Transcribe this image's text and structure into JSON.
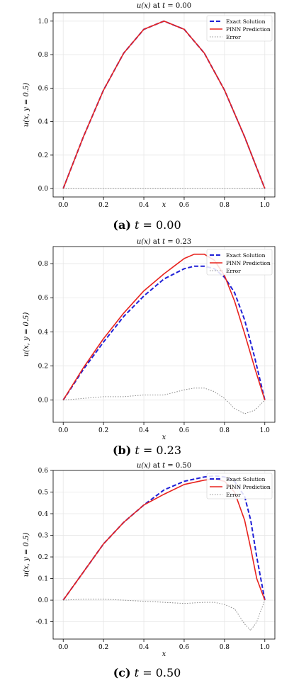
{
  "chart_data": [
    {
      "type": "line",
      "title_fn": "u(x)",
      "title_rest": " at ",
      "title_t": "t",
      "title_val": " = 0.00",
      "xlabel": "x",
      "ylabel": "u(x, y = 0.5)",
      "xlim": [
        -0.05,
        1.05
      ],
      "ylim": [
        -0.05,
        1.05
      ],
      "xticks": [
        "0.0",
        "0.2",
        "0.4",
        "0.6",
        "0.8",
        "1.0"
      ],
      "yticks": [
        "0.0",
        "0.2",
        "0.4",
        "0.6",
        "0.8",
        "1.0"
      ],
      "grid": true,
      "legend": "top-right",
      "x": [
        0.0,
        0.1,
        0.2,
        0.3,
        0.4,
        0.5,
        0.6,
        0.7,
        0.8,
        0.9,
        1.0
      ],
      "series": [
        {
          "name": "Exact Solution",
          "style": "dashed",
          "color": "#1f1fd6",
          "values": [
            0.0,
            0.309,
            0.588,
            0.809,
            0.951,
            1.0,
            0.951,
            0.809,
            0.588,
            0.309,
            0.0
          ]
        },
        {
          "name": "PINN Prediction",
          "style": "solid",
          "color": "#e8231e",
          "values": [
            0.0,
            0.309,
            0.588,
            0.809,
            0.951,
            1.0,
            0.951,
            0.809,
            0.588,
            0.309,
            0.0
          ]
        },
        {
          "name": "Error",
          "style": "dotted",
          "color": "#888888",
          "values": [
            0.0,
            0.0,
            0.0,
            0.0,
            0.0,
            0.0,
            0.0,
            0.0,
            0.0,
            0.0,
            0.0
          ]
        }
      ],
      "caption": {
        "letter": "(a)",
        "t": "t",
        "value": " = 0.00"
      }
    },
    {
      "type": "line",
      "title_fn": "u(x)",
      "title_rest": " at ",
      "title_t": "t",
      "title_val": " = 0.23",
      "xlabel": "x",
      "ylabel": "u(x, y = 0.5)",
      "xlim": [
        -0.05,
        1.05
      ],
      "ylim": [
        -0.13,
        0.9
      ],
      "xticks": [
        "0.0",
        "0.2",
        "0.4",
        "0.6",
        "0.8",
        "1.0"
      ],
      "yticks": [
        "0.0",
        "0.2",
        "0.4",
        "0.6",
        "0.8"
      ],
      "grid": true,
      "legend": "top-right",
      "x": [
        0.0,
        0.1,
        0.2,
        0.3,
        0.4,
        0.5,
        0.6,
        0.65,
        0.7,
        0.75,
        0.8,
        0.85,
        0.9,
        0.95,
        1.0
      ],
      "series": [
        {
          "name": "Exact Solution",
          "style": "dashed",
          "color": "#1f1fd6",
          "values": [
            0.0,
            0.18,
            0.34,
            0.49,
            0.61,
            0.71,
            0.77,
            0.785,
            0.785,
            0.77,
            0.72,
            0.63,
            0.47,
            0.25,
            0.0
          ]
        },
        {
          "name": "PINN Prediction",
          "style": "solid",
          "color": "#e8231e",
          "values": [
            0.0,
            0.19,
            0.36,
            0.51,
            0.64,
            0.74,
            0.83,
            0.855,
            0.855,
            0.82,
            0.73,
            0.58,
            0.39,
            0.19,
            0.0
          ]
        },
        {
          "name": "Error",
          "style": "dotted",
          "color": "#888888",
          "values": [
            0.0,
            0.01,
            0.02,
            0.02,
            0.03,
            0.03,
            0.06,
            0.07,
            0.07,
            0.05,
            0.01,
            -0.05,
            -0.08,
            -0.06,
            0.0
          ]
        }
      ],
      "caption": {
        "letter": "(b)",
        "t": "t",
        "value": " = 0.23"
      }
    },
    {
      "type": "line",
      "title_fn": "u(x)",
      "title_rest": " at ",
      "title_t": "t",
      "title_val": " = 0.50",
      "xlabel": "x",
      "ylabel": "u(x, y = 0.5)",
      "xlim": [
        -0.05,
        1.05
      ],
      "ylim": [
        -0.18,
        0.6
      ],
      "xticks": [
        "0.0",
        "0.2",
        "0.4",
        "0.6",
        "0.8",
        "1.0"
      ],
      "yticks": [
        "-0.1",
        "0.0",
        "0.1",
        "0.2",
        "0.3",
        "0.4",
        "0.5",
        "0.6"
      ],
      "grid": true,
      "legend": "top-right",
      "x": [
        0.0,
        0.1,
        0.2,
        0.3,
        0.4,
        0.5,
        0.6,
        0.7,
        0.75,
        0.8,
        0.85,
        0.9,
        0.93,
        0.96,
        1.0
      ],
      "series": [
        {
          "name": "Exact Solution",
          "style": "dashed",
          "color": "#1f1fd6",
          "values": [
            0.0,
            0.13,
            0.26,
            0.36,
            0.44,
            0.51,
            0.55,
            0.57,
            0.575,
            0.57,
            0.55,
            0.48,
            0.37,
            0.2,
            0.0
          ]
        },
        {
          "name": "PINN Prediction",
          "style": "solid",
          "color": "#e8231e",
          "values": [
            0.0,
            0.13,
            0.26,
            0.36,
            0.44,
            0.49,
            0.535,
            0.555,
            0.56,
            0.55,
            0.5,
            0.37,
            0.24,
            0.1,
            0.0
          ]
        },
        {
          "name": "Error",
          "style": "dotted",
          "color": "#888888",
          "values": [
            0.0,
            0.005,
            0.005,
            0.0,
            -0.005,
            -0.01,
            -0.015,
            -0.01,
            -0.01,
            -0.02,
            -0.04,
            -0.11,
            -0.14,
            -0.1,
            0.0
          ]
        }
      ],
      "caption": {
        "letter": "(c)",
        "t": "t",
        "value": " = 0.50"
      }
    }
  ]
}
